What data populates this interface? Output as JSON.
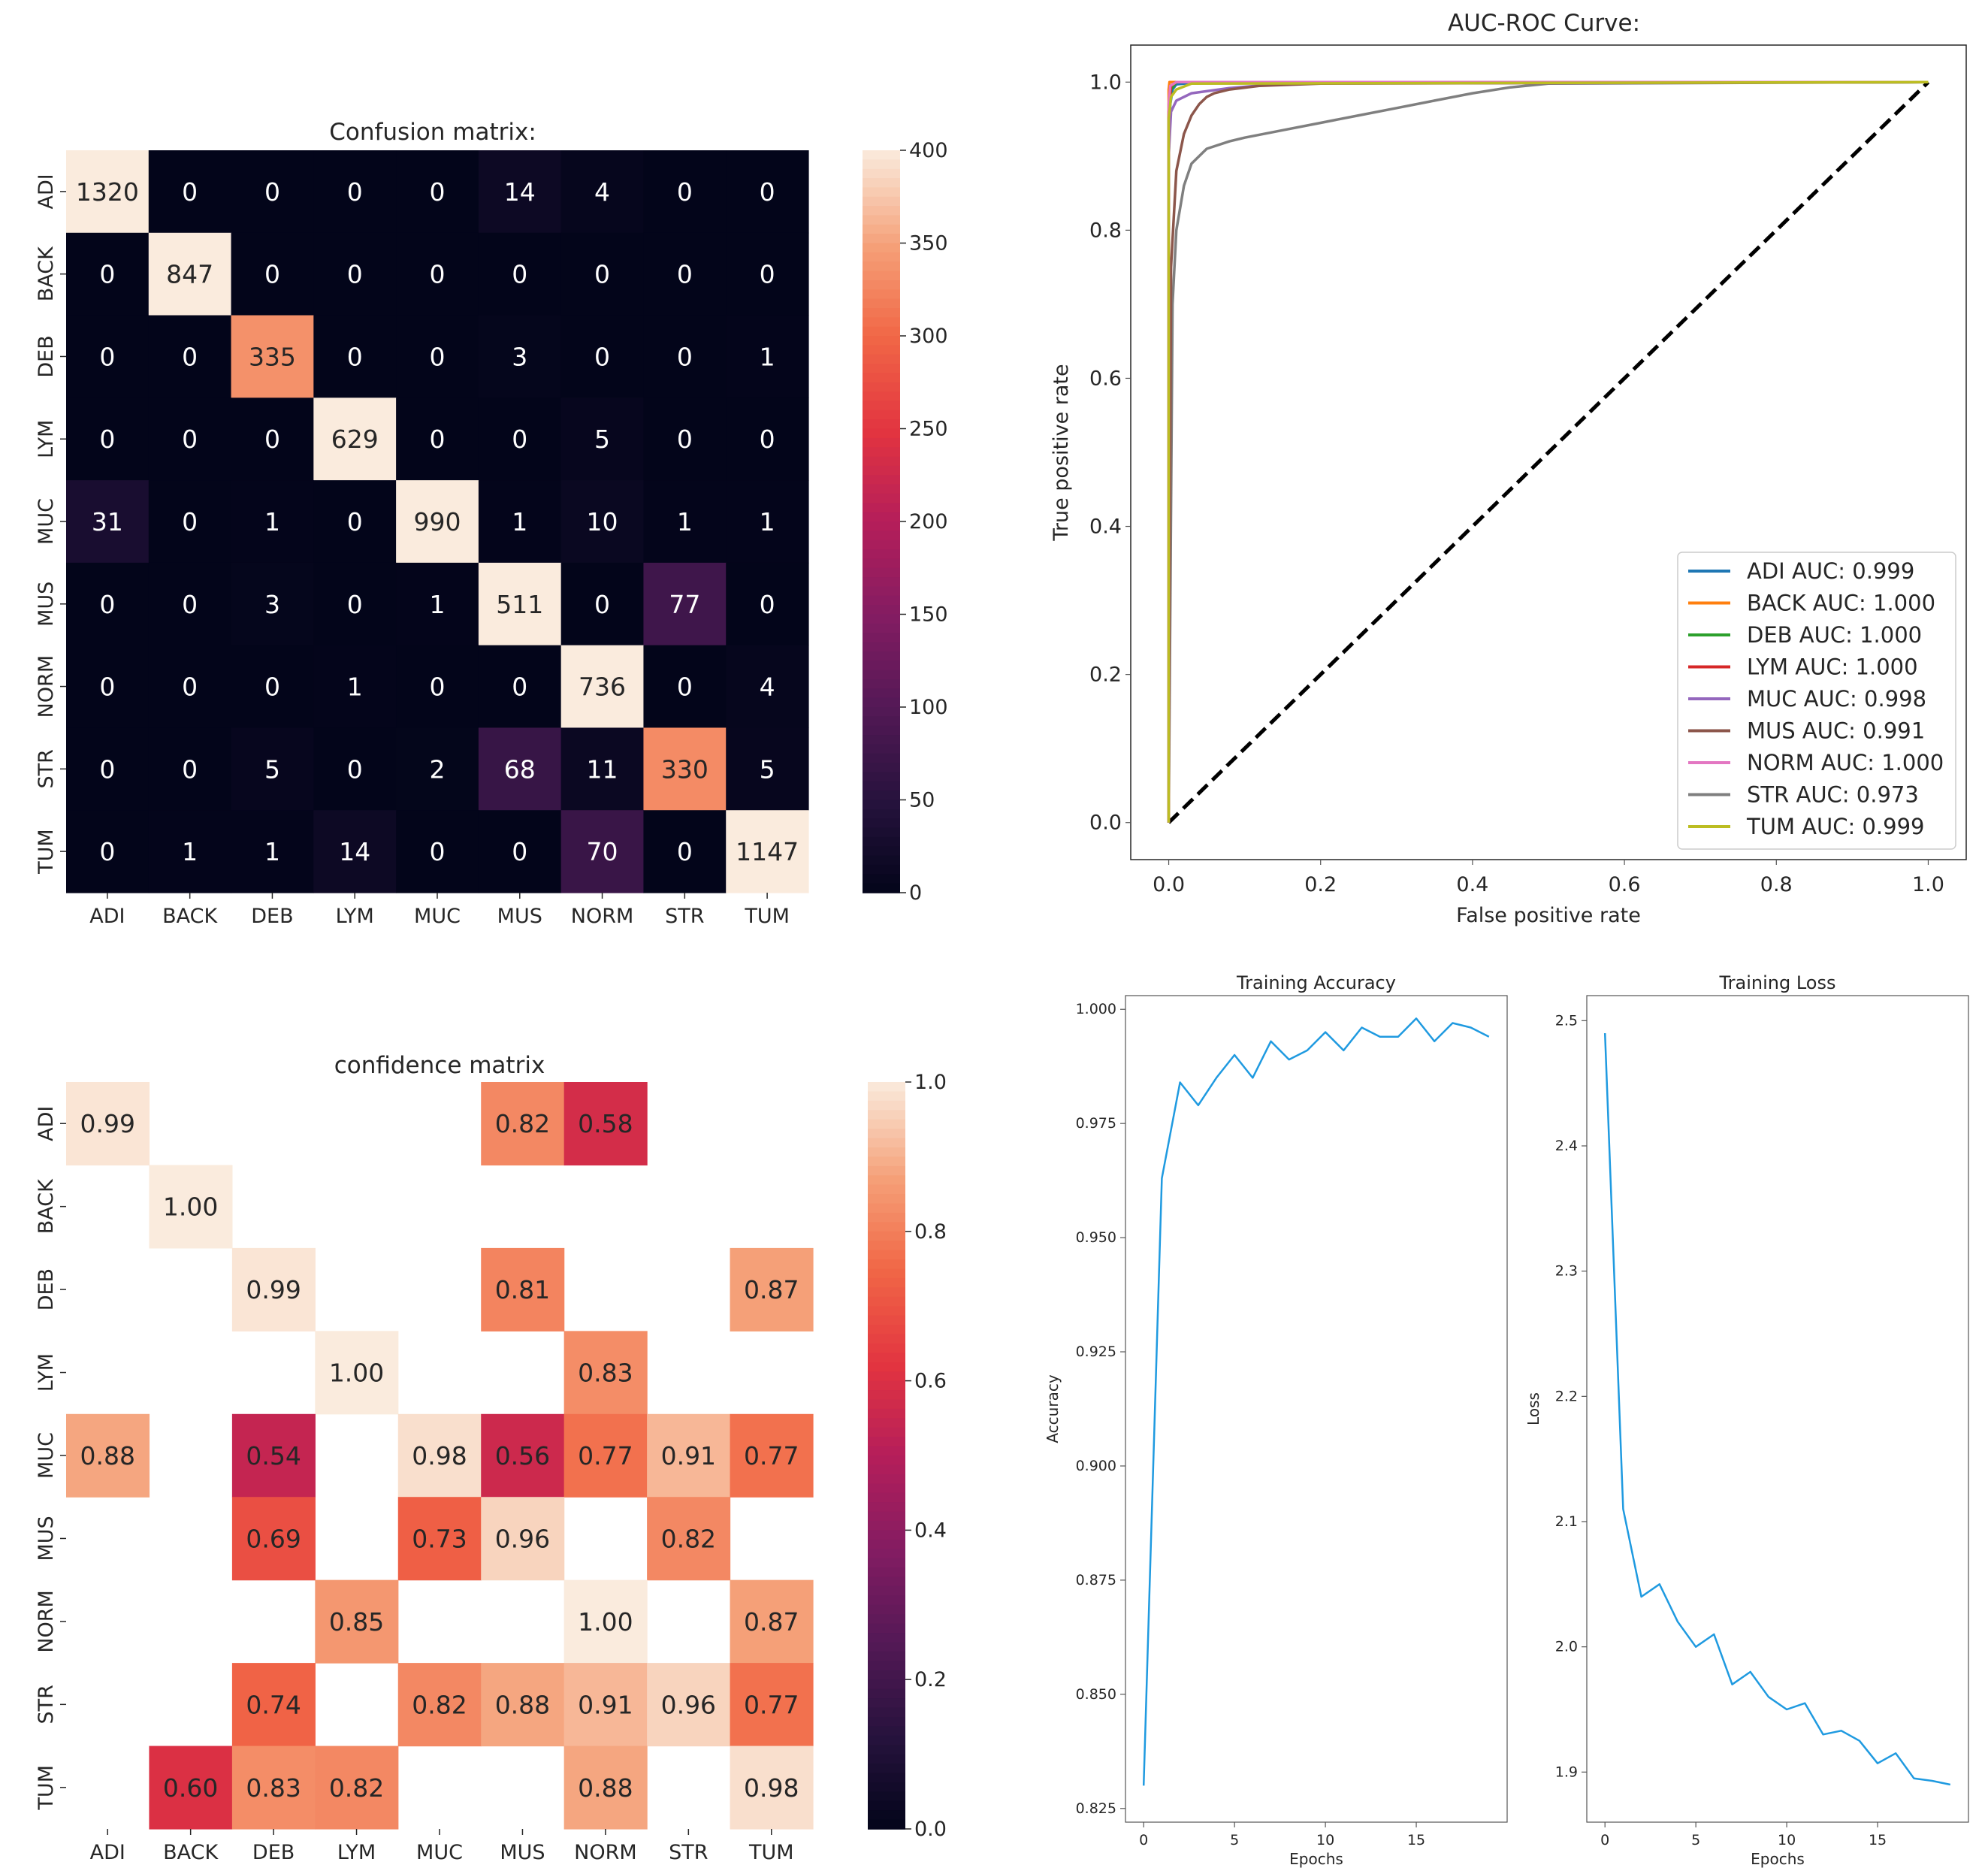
{
  "chart_data": [
    {
      "type": "heatmap",
      "title": "Confusion matrix:",
      "labels": [
        "ADI",
        "BACK",
        "DEB",
        "LYM",
        "MUC",
        "MUS",
        "NORM",
        "STR",
        "TUM"
      ],
      "values": [
        [
          1320,
          0,
          0,
          0,
          0,
          14,
          4,
          0,
          0
        ],
        [
          0,
          847,
          0,
          0,
          0,
          0,
          0,
          0,
          0
        ],
        [
          0,
          0,
          335,
          0,
          0,
          3,
          0,
          0,
          1
        ],
        [
          0,
          0,
          0,
          629,
          0,
          0,
          5,
          0,
          0
        ],
        [
          31,
          0,
          1,
          0,
          990,
          1,
          10,
          1,
          1
        ],
        [
          0,
          0,
          3,
          0,
          1,
          511,
          0,
          77,
          0
        ],
        [
          0,
          0,
          0,
          1,
          0,
          0,
          736,
          0,
          4
        ],
        [
          0,
          0,
          5,
          0,
          2,
          68,
          11,
          330,
          5
        ],
        [
          0,
          1,
          1,
          14,
          0,
          0,
          70,
          0,
          1147
        ]
      ],
      "cell_text": [
        [
          "1320",
          "0",
          "0",
          "0",
          "0",
          "14",
          "4",
          "0",
          "0"
        ],
        [
          "0",
          "847",
          "0",
          "0",
          "0",
          "0",
          "0",
          "0",
          "0"
        ],
        [
          "0",
          "0",
          "335",
          "0",
          "0",
          "3",
          "0",
          "0",
          "1"
        ],
        [
          "0",
          "0",
          "0",
          "629",
          "0",
          "0",
          "5",
          "0",
          "0"
        ],
        [
          "31",
          "0",
          "1",
          "0",
          "990",
          "1",
          "10",
          "1",
          "1"
        ],
        [
          "0",
          "0",
          "3",
          "0",
          "1",
          "511",
          "0",
          "77",
          "0"
        ],
        [
          "0",
          "0",
          "0",
          "1",
          "0",
          "0",
          "736",
          "0",
          "4"
        ],
        [
          "0",
          "0",
          "5",
          "0",
          "2",
          "68",
          "11",
          "330",
          "5"
        ],
        [
          "0",
          "1",
          "1",
          "14",
          "0",
          "0",
          "70",
          "0",
          "1147"
        ]
      ],
      "vmin": 0,
      "vmax": 400,
      "colorbar_ticks": [
        "0",
        "50",
        "100",
        "150",
        "200",
        "250",
        "300",
        "350",
        "400"
      ]
    },
    {
      "type": "line",
      "title": "AUC-ROC Curve:",
      "xlabel": "False positive rate",
      "ylabel": "True positive rate",
      "xlim": [
        -0.05,
        1.05
      ],
      "ylim": [
        -0.05,
        1.05
      ],
      "xticks": [
        "0.0",
        "0.2",
        "0.4",
        "0.6",
        "0.8",
        "1.0"
      ],
      "yticks": [
        "0.0",
        "0.2",
        "0.4",
        "0.6",
        "0.8",
        "1.0"
      ],
      "legend_position": "lower-right",
      "series": [
        {
          "name": "ADI AUC: 0.999",
          "color": "#1f77b4",
          "x": [
            0,
            0,
            0.002,
            0.005,
            0.01,
            0.03,
            1
          ],
          "y": [
            0,
            0.9,
            0.97,
            0.99,
            0.997,
            0.999,
            1
          ]
        },
        {
          "name": "BACK AUC: 1.000",
          "color": "#ff7f0e",
          "x": [
            0,
            0,
            0.001,
            1
          ],
          "y": [
            0,
            0.99,
            1,
            1
          ]
        },
        {
          "name": "DEB AUC: 1.000",
          "color": "#2ca02c",
          "x": [
            0,
            0,
            0.003,
            0.01,
            1
          ],
          "y": [
            0,
            0.95,
            0.99,
            1,
            1
          ]
        },
        {
          "name": "LYM AUC: 1.000",
          "color": "#d62728",
          "x": [
            0,
            0,
            0.003,
            0.01,
            1
          ],
          "y": [
            0,
            0.96,
            0.995,
            1,
            1
          ]
        },
        {
          "name": "MUC AUC: 0.998",
          "color": "#9467bd",
          "x": [
            0,
            0,
            0.003,
            0.01,
            0.03,
            0.08,
            0.15,
            1
          ],
          "y": [
            0,
            0.9,
            0.96,
            0.975,
            0.985,
            0.992,
            0.998,
            1
          ]
        },
        {
          "name": "MUS AUC: 0.991",
          "color": "#8c564b",
          "x": [
            0,
            0.003,
            0.01,
            0.02,
            0.03,
            0.04,
            0.05,
            0.06,
            0.08,
            0.12,
            0.2,
            1
          ],
          "y": [
            0,
            0.75,
            0.88,
            0.93,
            0.955,
            0.97,
            0.98,
            0.985,
            0.99,
            0.995,
            0.998,
            1
          ]
        },
        {
          "name": "NORM AUC: 1.000",
          "color": "#e377c2",
          "x": [
            0,
            0,
            0.002,
            0.01,
            1
          ],
          "y": [
            0,
            0.97,
            0.995,
            1,
            1
          ]
        },
        {
          "name": "STR AUC: 0.973",
          "color": "#7f7f7f",
          "x": [
            0,
            0.005,
            0.01,
            0.02,
            0.03,
            0.05,
            0.08,
            0.1,
            0.15,
            0.2,
            0.25,
            0.3,
            0.35,
            0.4,
            0.45,
            0.5,
            1
          ],
          "y": [
            0,
            0.7,
            0.8,
            0.86,
            0.89,
            0.91,
            0.92,
            0.925,
            0.935,
            0.945,
            0.955,
            0.965,
            0.975,
            0.985,
            0.993,
            0.998,
            1
          ]
        },
        {
          "name": "TUM AUC: 0.999",
          "color": "#bcbd22",
          "x": [
            0,
            0,
            0.003,
            0.01,
            0.03,
            1
          ],
          "y": [
            0,
            0.95,
            0.98,
            0.99,
            0.998,
            1
          ]
        }
      ],
      "reference_line": {
        "x": [
          0,
          1
        ],
        "y": [
          0,
          1
        ],
        "style": "dashed",
        "color": "#000000"
      }
    },
    {
      "type": "heatmap",
      "title": "confidence matrix",
      "labels": [
        "ADI",
        "BACK",
        "DEB",
        "LYM",
        "MUC",
        "MUS",
        "NORM",
        "STR",
        "TUM"
      ],
      "values": [
        [
          0.99,
          null,
          null,
          null,
          null,
          0.82,
          0.58,
          null,
          null
        ],
        [
          null,
          1.0,
          null,
          null,
          null,
          null,
          null,
          null,
          null
        ],
        [
          null,
          null,
          0.99,
          null,
          null,
          0.81,
          null,
          null,
          0.87
        ],
        [
          null,
          null,
          null,
          1.0,
          null,
          null,
          0.83,
          null,
          null
        ],
        [
          0.88,
          null,
          0.54,
          null,
          0.98,
          0.56,
          0.77,
          0.91,
          0.77
        ],
        [
          null,
          null,
          0.69,
          null,
          0.73,
          0.96,
          null,
          0.82,
          null
        ],
        [
          null,
          null,
          null,
          0.85,
          null,
          null,
          1.0,
          null,
          0.87
        ],
        [
          null,
          null,
          0.74,
          null,
          0.82,
          0.88,
          0.91,
          0.96,
          0.77
        ],
        [
          null,
          0.6,
          0.83,
          0.82,
          null,
          null,
          0.88,
          null,
          0.98
        ]
      ],
      "cell_text": [
        [
          "0.99",
          "",
          "",
          "",
          "",
          "0.82",
          "0.58",
          "",
          ""
        ],
        [
          "",
          "1.00",
          "",
          "",
          "",
          "",
          "",
          "",
          ""
        ],
        [
          "",
          "",
          "0.99",
          "",
          "",
          "0.81",
          "",
          "",
          "0.87"
        ],
        [
          "",
          "",
          "",
          "1.00",
          "",
          "",
          "0.83",
          "",
          ""
        ],
        [
          "0.88",
          "",
          "0.54",
          "",
          "0.98",
          "0.56",
          "0.77",
          "0.91",
          "0.77"
        ],
        [
          "",
          "",
          "0.69",
          "",
          "0.73",
          "0.96",
          "",
          "0.82",
          ""
        ],
        [
          "",
          "",
          "",
          "0.85",
          "",
          "",
          "1.00",
          "",
          "0.87"
        ],
        [
          "",
          "",
          "0.74",
          "",
          "0.82",
          "0.88",
          "0.91",
          "0.96",
          "0.77"
        ],
        [
          "",
          "0.60",
          "0.83",
          "0.82",
          "",
          "",
          "0.88",
          "",
          "0.98"
        ]
      ],
      "vmin": 0.0,
      "vmax": 1.0,
      "colorbar_ticks": [
        "0.0",
        "0.2",
        "0.4",
        "0.6",
        "0.8",
        "1.0"
      ]
    },
    {
      "type": "line",
      "title": "Training Accuracy",
      "xlabel": "Epochs",
      "ylabel": "Accuracy",
      "xlim": [
        -1,
        20
      ],
      "ylim": [
        0.822,
        1.003
      ],
      "xticks": [
        "0",
        "5",
        "10",
        "15"
      ],
      "yticks": [
        "0.825",
        "0.850",
        "0.875",
        "0.900",
        "0.925",
        "0.950",
        "0.975",
        "1.000"
      ],
      "series": [
        {
          "name": "accuracy",
          "color": "#1f9ae0",
          "x": [
            0,
            1,
            2,
            3,
            4,
            5,
            6,
            7,
            8,
            9,
            10,
            11,
            12,
            13,
            14,
            15,
            16,
            17,
            18,
            19
          ],
          "y": [
            0.83,
            0.963,
            0.984,
            0.979,
            0.985,
            0.99,
            0.985,
            0.993,
            0.989,
            0.991,
            0.995,
            0.991,
            0.996,
            0.994,
            0.994,
            0.998,
            0.993,
            0.997,
            0.996,
            0.994
          ]
        }
      ]
    },
    {
      "type": "line",
      "title": "Training Loss",
      "xlabel": "Epochs",
      "ylabel": "Loss",
      "xlim": [
        -1,
        20
      ],
      "ylim": [
        1.86,
        2.52
      ],
      "xticks": [
        "0",
        "5",
        "10",
        "15"
      ],
      "yticks": [
        "1.9",
        "2.0",
        "2.1",
        "2.2",
        "2.3",
        "2.4",
        "2.5"
      ],
      "series": [
        {
          "name": "loss",
          "color": "#1f9ae0",
          "x": [
            0,
            1,
            2,
            3,
            4,
            5,
            6,
            7,
            8,
            9,
            10,
            11,
            12,
            13,
            14,
            15,
            16,
            17,
            18,
            19
          ],
          "y": [
            2.49,
            2.11,
            2.04,
            2.05,
            2.02,
            2.0,
            2.01,
            1.97,
            1.98,
            1.96,
            1.95,
            1.955,
            1.93,
            1.933,
            1.925,
            1.907,
            1.915,
            1.895,
            1.893,
            1.89
          ]
        }
      ]
    }
  ]
}
